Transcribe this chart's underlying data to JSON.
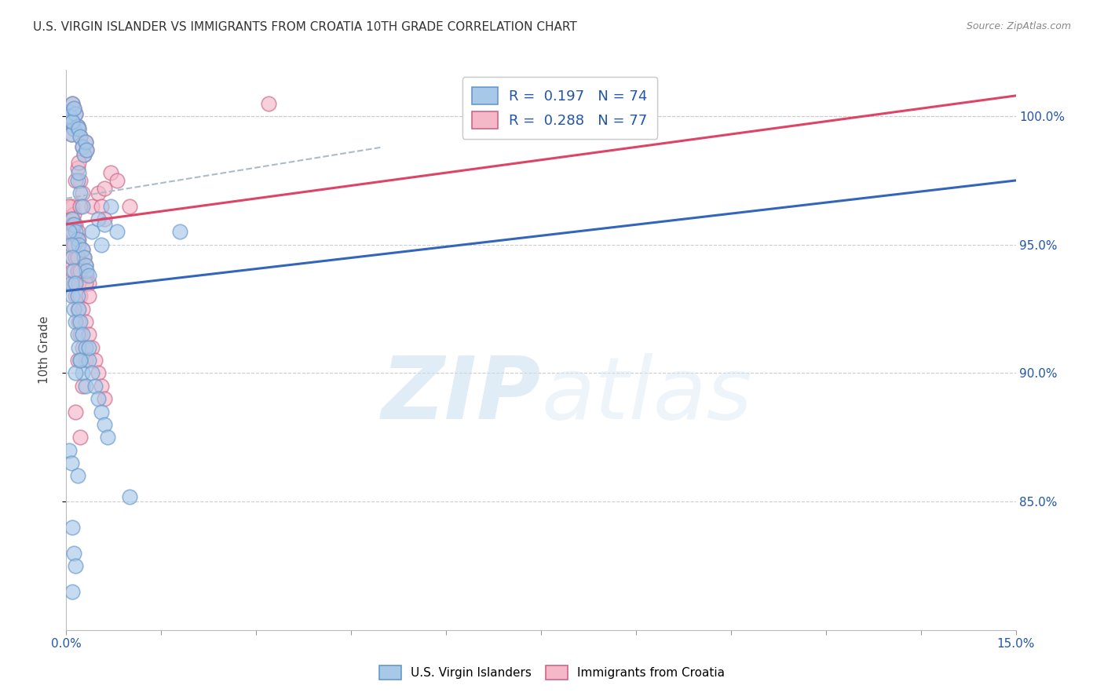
{
  "title": "U.S. VIRGIN ISLANDER VS IMMIGRANTS FROM CROATIA 10TH GRADE CORRELATION CHART",
  "source": "Source: ZipAtlas.com",
  "legend_label1": "U.S. Virgin Islanders",
  "legend_label2": "Immigrants from Croatia",
  "R1": 0.197,
  "N1": 74,
  "R2": 0.288,
  "N2": 77,
  "color_blue": "#a8c8e8",
  "color_pink": "#f4b8c8",
  "color_blue_edge": "#6699cc",
  "color_pink_edge": "#cc6688",
  "color_blue_line": "#3366bb",
  "color_pink_line": "#dd4466",
  "color_dashed_line": "#aabbcc",
  "xmin": 0.0,
  "xmax": 15.0,
  "ymin": 80.0,
  "ymax": 101.8,
  "ylabel": "10th Grade",
  "y_ticks": [
    85.0,
    90.0,
    95.0,
    100.0
  ],
  "blue_line_x0": 0.0,
  "blue_line_y0": 93.2,
  "blue_line_x1": 15.0,
  "blue_line_y1": 97.5,
  "pink_line_x0": 0.0,
  "pink_line_y0": 95.8,
  "pink_line_x1": 15.0,
  "pink_line_y1": 100.8,
  "dash_line_x0": 0.0,
  "dash_line_y0": 96.8,
  "dash_line_x1": 5.0,
  "dash_line_y1": 98.8,
  "blue_scatter_x": [
    0.05,
    0.08,
    0.1,
    0.12,
    0.05,
    0.08,
    0.15,
    0.18,
    0.1,
    0.12,
    0.2,
    0.22,
    0.25,
    0.28,
    0.3,
    0.32,
    0.18,
    0.2,
    0.22,
    0.25,
    0.1,
    0.12,
    0.15,
    0.18,
    0.2,
    0.25,
    0.28,
    0.3,
    0.32,
    0.35,
    0.4,
    0.5,
    0.55,
    0.6,
    0.7,
    0.8,
    0.08,
    0.1,
    0.12,
    0.15,
    0.18,
    0.2,
    0.22,
    0.25,
    0.3,
    0.05,
    0.08,
    0.1,
    0.12,
    0.15,
    0.18,
    0.2,
    0.22,
    0.25,
    0.3,
    0.35,
    0.4,
    0.45,
    0.5,
    0.55,
    0.6,
    0.65,
    0.05,
    0.08,
    1.0,
    0.15,
    0.22,
    0.35,
    1.8,
    0.1,
    0.12,
    0.15,
    0.1,
    0.18
  ],
  "blue_scatter_y": [
    100.2,
    99.8,
    100.5,
    99.5,
    100.0,
    99.3,
    100.1,
    99.6,
    99.8,
    100.3,
    99.5,
    99.2,
    98.8,
    98.5,
    99.0,
    98.7,
    97.5,
    97.8,
    97.0,
    96.5,
    96.0,
    95.8,
    95.5,
    95.2,
    95.0,
    94.8,
    94.5,
    94.2,
    94.0,
    93.8,
    95.5,
    96.0,
    95.0,
    95.8,
    96.5,
    95.5,
    93.5,
    93.0,
    92.5,
    92.0,
    91.5,
    91.0,
    90.5,
    90.0,
    89.5,
    95.5,
    95.0,
    94.5,
    94.0,
    93.5,
    93.0,
    92.5,
    92.0,
    91.5,
    91.0,
    90.5,
    90.0,
    89.5,
    89.0,
    88.5,
    88.0,
    87.5,
    87.0,
    86.5,
    85.2,
    90.0,
    90.5,
    91.0,
    95.5,
    84.0,
    83.0,
    82.5,
    81.5,
    86.0
  ],
  "pink_scatter_x": [
    0.05,
    0.08,
    0.1,
    0.12,
    0.05,
    0.08,
    0.15,
    0.18,
    0.1,
    0.12,
    0.2,
    0.22,
    0.25,
    0.28,
    0.3,
    0.32,
    0.18,
    0.2,
    0.22,
    0.25,
    0.1,
    0.12,
    0.15,
    0.18,
    0.2,
    0.25,
    0.28,
    0.3,
    0.32,
    0.35,
    0.4,
    0.5,
    0.55,
    0.6,
    0.7,
    0.8,
    0.08,
    0.1,
    0.12,
    0.15,
    0.18,
    0.2,
    0.22,
    0.25,
    0.3,
    0.05,
    0.08,
    0.1,
    0.12,
    0.15,
    0.18,
    0.2,
    0.22,
    0.25,
    0.3,
    0.35,
    0.4,
    0.45,
    0.5,
    0.55,
    0.6,
    1.0,
    0.15,
    0.22,
    3.2,
    0.1,
    0.12,
    0.18,
    0.1,
    0.22,
    0.3,
    0.35,
    0.15,
    0.25,
    0.6,
    0.18,
    0.22
  ],
  "pink_scatter_y": [
    100.2,
    99.8,
    100.5,
    99.5,
    100.0,
    99.3,
    100.1,
    99.6,
    99.8,
    100.3,
    99.5,
    99.2,
    98.8,
    98.5,
    99.0,
    98.7,
    98.0,
    98.2,
    97.5,
    97.0,
    96.5,
    96.2,
    95.8,
    95.5,
    95.2,
    94.8,
    94.5,
    94.2,
    93.8,
    93.5,
    96.5,
    97.0,
    96.5,
    97.2,
    97.8,
    97.5,
    94.5,
    94.0,
    93.5,
    93.0,
    92.5,
    92.0,
    91.5,
    91.0,
    90.5,
    96.5,
    96.0,
    95.5,
    95.0,
    94.5,
    94.0,
    93.5,
    93.0,
    92.5,
    92.0,
    91.5,
    91.0,
    90.5,
    90.0,
    89.5,
    89.0,
    96.5,
    97.5,
    96.5,
    100.5,
    95.5,
    95.0,
    94.5,
    95.8,
    94.0,
    93.5,
    93.0,
    88.5,
    89.5,
    96.0,
    90.5,
    87.5
  ]
}
